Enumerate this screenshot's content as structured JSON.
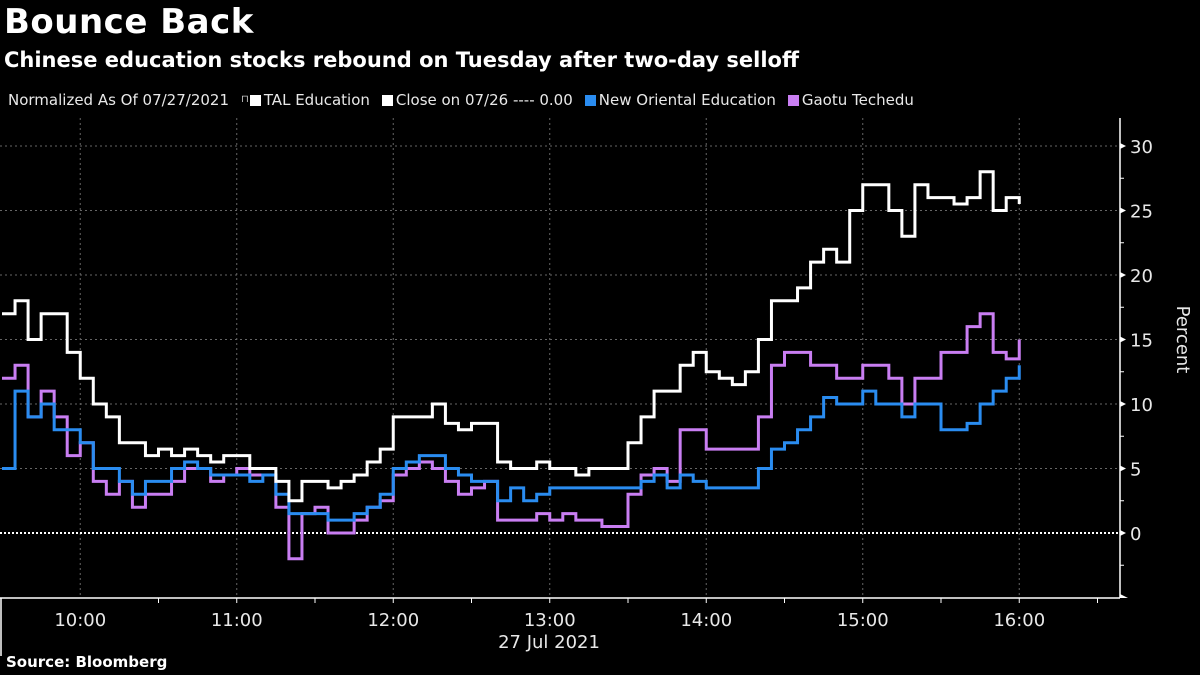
{
  "header": {
    "title": "Bounce Back",
    "subtitle": "Chinese education stocks rebound on Tuesday after two-day selloff"
  },
  "legend": {
    "normalized_label": "Normalized As Of 07/27/2021",
    "items": [
      {
        "label": "TAL Education",
        "color": "#ffffff"
      },
      {
        "label": "Close on 07/26 ---- 0.00",
        "color": "#ffffff"
      },
      {
        "label": "New Oriental Education",
        "color": "#2a8cf0"
      },
      {
        "label": "Gaotu Techedu",
        "color": "#c97ef2"
      }
    ]
  },
  "footer": {
    "source": "Source: Bloomberg"
  },
  "chart_data": {
    "type": "line",
    "title": "Bounce Back",
    "subtitle": "Chinese education stocks rebound on Tuesday after two-day selloff",
    "xlabel": "27 Jul 2021",
    "ylabel": "Percent",
    "ylim": [
      -5,
      32
    ],
    "xlim": [
      "09:30",
      "16:40"
    ],
    "yticks": [
      0,
      5,
      10,
      15,
      20,
      25,
      30
    ],
    "xticks": [
      "10:00",
      "11:00",
      "12:00",
      "13:00",
      "14:00",
      "15:00",
      "16:00"
    ],
    "grid": true,
    "legend_position": "top-left",
    "reference_line": {
      "label": "Close on 07/26",
      "value": 0.0
    },
    "x": [
      "09:30",
      "09:35",
      "09:40",
      "09:45",
      "09:50",
      "09:55",
      "10:00",
      "10:05",
      "10:10",
      "10:15",
      "10:20",
      "10:25",
      "10:30",
      "10:35",
      "10:40",
      "10:45",
      "10:50",
      "10:55",
      "11:00",
      "11:05",
      "11:10",
      "11:15",
      "11:20",
      "11:25",
      "11:30",
      "11:35",
      "11:40",
      "11:45",
      "11:50",
      "11:55",
      "12:00",
      "12:05",
      "12:10",
      "12:15",
      "12:20",
      "12:25",
      "12:30",
      "12:35",
      "12:40",
      "12:45",
      "12:50",
      "12:55",
      "13:00",
      "13:05",
      "13:10",
      "13:15",
      "13:20",
      "13:25",
      "13:30",
      "13:35",
      "13:40",
      "13:45",
      "13:50",
      "13:55",
      "14:00",
      "14:05",
      "14:10",
      "14:15",
      "14:20",
      "14:25",
      "14:30",
      "14:35",
      "14:40",
      "14:45",
      "14:50",
      "14:55",
      "15:00",
      "15:05",
      "15:10",
      "15:15",
      "15:20",
      "15:25",
      "15:30",
      "15:35",
      "15:40",
      "15:45",
      "15:50",
      "15:55",
      "16:00"
    ],
    "series": [
      {
        "name": "TAL Education",
        "color": "#ffffff",
        "values": [
          17,
          18,
          15,
          17,
          17,
          14,
          12,
          10,
          9,
          7,
          7,
          6,
          6.5,
          6,
          6.5,
          6,
          5.5,
          6,
          6,
          5,
          5,
          4,
          2.5,
          4,
          4,
          3.5,
          4,
          4.5,
          5.5,
          6.5,
          9,
          9,
          9,
          10,
          8.5,
          8,
          8.5,
          8.5,
          5.5,
          5,
          5,
          5.5,
          5,
          5,
          4.5,
          5,
          5,
          5,
          7,
          9,
          11,
          11,
          13,
          14,
          12.5,
          12,
          11.5,
          12.5,
          15,
          18,
          18,
          19,
          21,
          22,
          21,
          25,
          27,
          27,
          25,
          23,
          27,
          26,
          26,
          25.5,
          26,
          28,
          25,
          26,
          25.5
        ]
      },
      {
        "name": "New Oriental Education",
        "color": "#2a8cf0",
        "values": [
          5,
          11,
          9,
          10,
          8,
          8,
          7,
          5,
          5,
          4,
          3,
          4,
          4,
          5,
          5.5,
          5,
          4.5,
          4.5,
          4.5,
          4,
          4.5,
          3,
          1.5,
          1.5,
          1.5,
          1,
          1,
          1.5,
          2,
          3,
          5,
          5.5,
          6,
          6,
          5,
          4.5,
          4,
          4,
          2.5,
          3.5,
          2.5,
          3,
          3.5,
          3.5,
          3.5,
          3.5,
          3.5,
          3.5,
          3.5,
          4,
          4.5,
          3.5,
          4.5,
          4,
          3.5,
          3.5,
          3.5,
          3.5,
          5,
          6.5,
          7,
          8,
          9,
          10.5,
          10,
          10,
          11,
          10,
          10,
          9,
          10,
          10,
          8,
          8,
          8.5,
          10,
          11,
          12,
          13
        ]
      },
      {
        "name": "Gaotu Techedu",
        "color": "#c97ef2",
        "values": [
          12,
          13,
          9,
          11,
          9,
          6,
          7,
          4,
          3,
          4,
          2,
          3,
          3,
          4,
          5,
          5,
          4,
          4.5,
          5,
          4.5,
          4.5,
          2,
          -2,
          1.5,
          2,
          0,
          0,
          1,
          2,
          2.5,
          4.5,
          5,
          5.5,
          5,
          4,
          3,
          3.5,
          4,
          1,
          1,
          1,
          1.5,
          1,
          1.5,
          1,
          1,
          0.5,
          0.5,
          3,
          4.5,
          5,
          4,
          8,
          8,
          6.5,
          6.5,
          6.5,
          6.5,
          9,
          13,
          14,
          14,
          13,
          13,
          12,
          12,
          13,
          13,
          12,
          10,
          12,
          12,
          14,
          14,
          16,
          17,
          14,
          13.5,
          15
        ]
      }
    ]
  }
}
